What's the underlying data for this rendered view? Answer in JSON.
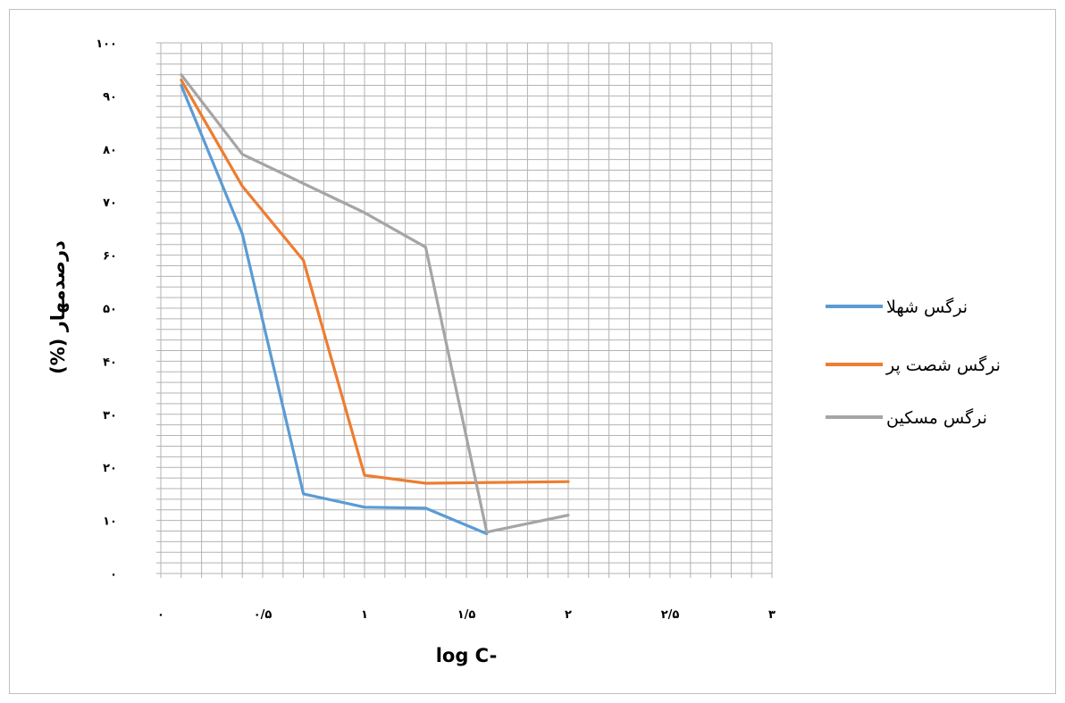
{
  "chart_data": {
    "type": "line",
    "xlabel": "log C-",
    "ylabel": "درصدمهار (%)",
    "xlim": [
      0,
      3
    ],
    "ylim": [
      0,
      100
    ],
    "x_ticks": [
      {
        "value": 0,
        "label": "۰"
      },
      {
        "value": 0.5,
        "label": "۰/۵"
      },
      {
        "value": 1,
        "label": "۱"
      },
      {
        "value": 1.5,
        "label": "۱/۵"
      },
      {
        "value": 2,
        "label": "۲"
      },
      {
        "value": 2.5,
        "label": "۲/۵"
      },
      {
        "value": 3,
        "label": "۳"
      }
    ],
    "y_ticks": [
      {
        "value": 0,
        "label": "۰"
      },
      {
        "value": 10,
        "label": "۱۰"
      },
      {
        "value": 20,
        "label": "۲۰"
      },
      {
        "value": 30,
        "label": "۳۰"
      },
      {
        "value": 40,
        "label": "۴۰"
      },
      {
        "value": 50,
        "label": "۵۰"
      },
      {
        "value": 60,
        "label": "۶۰"
      },
      {
        "value": 70,
        "label": "۷۰"
      },
      {
        "value": 80,
        "label": "۸۰"
      },
      {
        "value": 90,
        "label": "۹۰"
      },
      {
        "value": 100,
        "label": "۱۰۰"
      }
    ],
    "grid": true,
    "legend_position": "right",
    "series": [
      {
        "name": "نرگس شهلا",
        "color": "#5B9BD5",
        "points": [
          [
            0.1,
            92
          ],
          [
            0.4,
            64
          ],
          [
            0.7,
            15
          ],
          [
            1.0,
            12.5
          ],
          [
            1.3,
            12.3
          ],
          [
            1.6,
            7.5
          ]
        ]
      },
      {
        "name": "نرگس شصت پر",
        "color": "#ED7D31",
        "points": [
          [
            0.1,
            93
          ],
          [
            0.4,
            73
          ],
          [
            0.7,
            59
          ],
          [
            1.0,
            18.5
          ],
          [
            1.3,
            17
          ],
          [
            2.0,
            17.3
          ]
        ]
      },
      {
        "name": "نرگس مسکین",
        "color": "#A5A5A5",
        "points": [
          [
            0.1,
            94
          ],
          [
            0.4,
            79
          ],
          [
            1.0,
            68
          ],
          [
            1.3,
            61.5
          ],
          [
            1.6,
            7.8
          ],
          [
            2.0,
            11
          ]
        ]
      }
    ]
  }
}
